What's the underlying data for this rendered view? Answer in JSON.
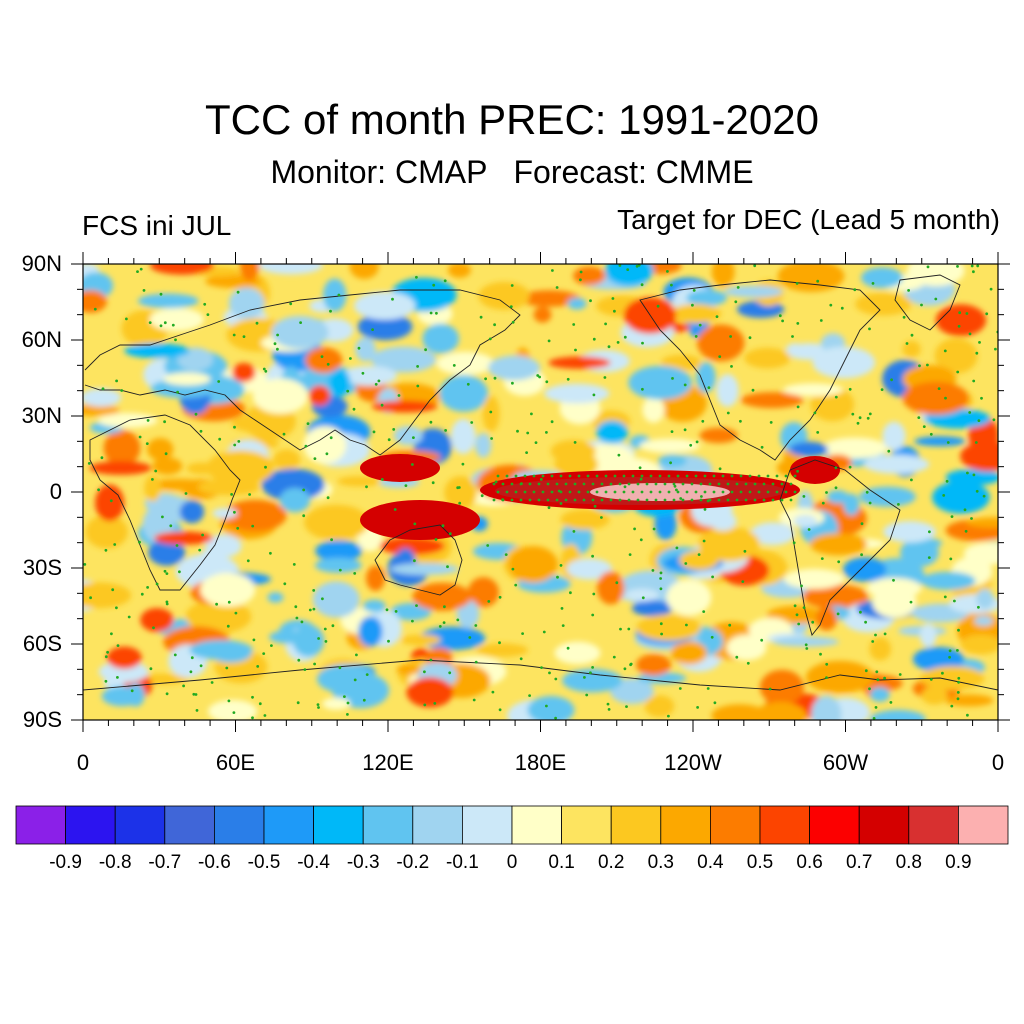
{
  "title": "TCC of month PREC: 1991-2020",
  "subtitle": "Monitor: CMAP   Forecast: CMME",
  "left_label": "FCS ini JUL",
  "right_label": "Target for DEC (Lead 5 month)",
  "lat_labels": [
    "90N",
    "60N",
    "30N",
    "0",
    "30S",
    "60S",
    "90S"
  ],
  "lon_labels": [
    "0",
    "60E",
    "120E",
    "180E",
    "120W",
    "60W",
    "0"
  ],
  "colorbar": {
    "labels": [
      "-0.9",
      "-0.8",
      "-0.7",
      "-0.6",
      "-0.5",
      "-0.4",
      "-0.3",
      "-0.2",
      "-0.1",
      "0",
      "0.1",
      "0.2",
      "0.3",
      "0.4",
      "0.5",
      "0.6",
      "0.7",
      "0.8",
      "0.9"
    ],
    "colors": [
      "#8b20e8",
      "#2c14f0",
      "#1c32e8",
      "#4066d8",
      "#2a7ee8",
      "#1e9af8",
      "#00b8f8",
      "#60c4f0",
      "#a0d4f0",
      "#cce8f8",
      "#ffffc8",
      "#fde460",
      "#fcc820",
      "#fca800",
      "#fc7c00",
      "#fc4400",
      "#fc0000",
      "#d40000",
      "#d83030",
      "#fcb0b0"
    ]
  },
  "colors": {
    "stipple": "#22aa22",
    "coast": "#222222"
  }
}
